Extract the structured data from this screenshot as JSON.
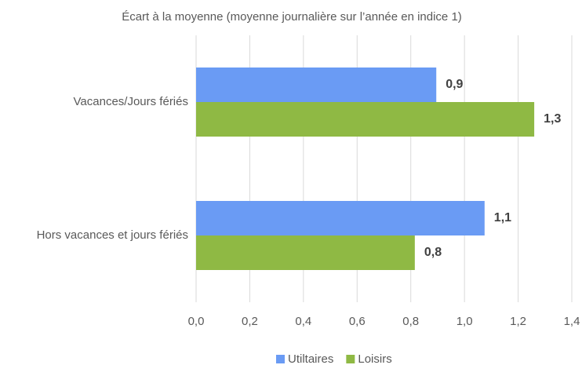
{
  "chart_data": {
    "type": "hbar",
    "title": "Écart à la moyenne (moyenne journalière sur l’année en indice 1)",
    "categories": [
      "Vacances/Jours fériés",
      "Hors vacances et jours fériés"
    ],
    "series": [
      {
        "name": "Utiltaires",
        "color": "#6a9bf4",
        "values": [
          0.895,
          1.075
        ],
        "value_labels": [
          "0,9",
          "1,1"
        ]
      },
      {
        "name": "Loisirs",
        "color": "#8fb944",
        "values": [
          1.26,
          0.815
        ],
        "value_labels": [
          "1,3",
          "0,8"
        ]
      }
    ],
    "xlim": [
      0,
      1.4
    ],
    "xticks": [
      {
        "value": 0,
        "label": "0,0"
      },
      {
        "value": 0.2,
        "label": "0,2"
      },
      {
        "value": 0.4,
        "label": "0,4"
      },
      {
        "value": 0.6,
        "label": "0,6"
      },
      {
        "value": 0.8,
        "label": "0,8"
      },
      {
        "value": 1,
        "label": "1,0"
      },
      {
        "value": 1.2,
        "label": "1,2"
      },
      {
        "value": 1.4,
        "label": "1,4"
      }
    ],
    "grid": true,
    "legend": "bottom"
  }
}
